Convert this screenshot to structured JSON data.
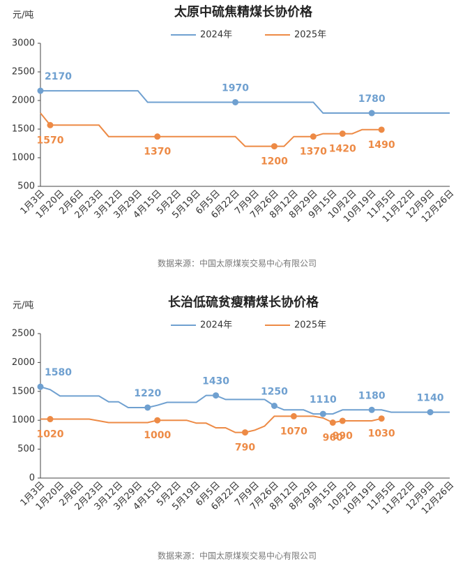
{
  "chart_data": [
    {
      "type": "line",
      "title": "太原中硫焦精煤长协价格",
      "ylabel": "元/吨",
      "source": "数据来源：中国太原煤炭交易中心有限公司",
      "categories": [
        "1月3日",
        null,
        "1月20日",
        null,
        "2月6日",
        null,
        "2月23日",
        null,
        "3月12日",
        null,
        "3月29日",
        null,
        "4月15日",
        null,
        "5月2日",
        null,
        "5月19日",
        null,
        "6月5日",
        null,
        "6月22日",
        null,
        "7月9日",
        null,
        "7月26日",
        null,
        "8月12日",
        null,
        "8月29日",
        null,
        "9月15日",
        null,
        "10月2日",
        null,
        "10月19日",
        null,
        "11月5日",
        null,
        "11月22日",
        null,
        "12月9日",
        null,
        "12月26日"
      ],
      "series": [
        {
          "name": "2024年",
          "color": "#6fa0d0",
          "label_side": "above",
          "marked_points": [
            0,
            20,
            34
          ],
          "values": [
            2170,
            2170,
            2170,
            2170,
            2170,
            2170,
            2170,
            2170,
            2170,
            2170,
            2170,
            1970,
            1970,
            1970,
            1970,
            1970,
            1970,
            1970,
            1970,
            1970,
            1970,
            1970,
            1970,
            1970,
            1970,
            1970,
            1970,
            1970,
            1970,
            1780,
            1780,
            1780,
            1780,
            1780,
            1780,
            1780,
            1780,
            1780,
            1780,
            1780,
            1780,
            1780,
            1780
          ]
        },
        {
          "name": "2025年",
          "color": "#ed8a45",
          "label_side": "below",
          "marked_points": [
            1,
            12,
            24,
            28,
            31,
            35
          ],
          "values": [
            1780,
            1570,
            1570,
            1570,
            1570,
            1570,
            1570,
            1370,
            1370,
            1370,
            1370,
            1370,
            1370,
            1370,
            1370,
            1370,
            1370,
            1370,
            1370,
            1370,
            1370,
            1200,
            1200,
            1200,
            1200,
            1200,
            1370,
            1370,
            1370,
            1420,
            1420,
            1420,
            1420,
            1490,
            1490,
            1490,
            null,
            null,
            null,
            null,
            null,
            null,
            null
          ]
        }
      ],
      "ylim": [
        500,
        3000
      ],
      "yticks": [
        500,
        1000,
        1500,
        2000,
        2500,
        3000
      ],
      "grid": false
    },
    {
      "type": "line",
      "title": "长治低硫贫瘦精煤长协价格",
      "ylabel": "元/吨",
      "source": "数据来源：中国太原煤炭交易中心有限公司",
      "categories": [
        "1月3日",
        null,
        "1月20日",
        null,
        "2月6日",
        null,
        "2月23日",
        null,
        "3月12日",
        null,
        "3月29日",
        null,
        "4月15日",
        null,
        "5月2日",
        null,
        "5月19日",
        null,
        "6月5日",
        null,
        "6月22日",
        null,
        "7月9日",
        null,
        "7月26日",
        null,
        "8月12日",
        null,
        "8月29日",
        null,
        "9月15日",
        null,
        "10月2日",
        null,
        "10月19日",
        null,
        "11月5日",
        null,
        "11月22日",
        null,
        "12月9日",
        null,
        "12月26日"
      ],
      "series": [
        {
          "name": "2024年",
          "color": "#6fa0d0",
          "label_side": "above",
          "marked_points": [
            0,
            11,
            18,
            24,
            29,
            34,
            40
          ],
          "values": [
            1580,
            1530,
            1420,
            1420,
            1420,
            1420,
            1420,
            1320,
            1320,
            1220,
            1220,
            1220,
            1260,
            1310,
            1310,
            1310,
            1310,
            1430,
            1430,
            1360,
            1360,
            1360,
            1360,
            1360,
            1250,
            1180,
            1180,
            1180,
            1110,
            1110,
            1110,
            1180,
            1180,
            1180,
            1180,
            1180,
            1140,
            1140,
            1140,
            1140,
            1140,
            1140,
            1140
          ]
        },
        {
          "name": "2025年",
          "color": "#ed8a45",
          "label_side": "below",
          "marked_points": [
            1,
            12,
            21,
            26,
            30,
            31,
            35
          ],
          "values": [
            1020,
            1020,
            1020,
            1020,
            1020,
            1020,
            990,
            960,
            960,
            960,
            960,
            960,
            1000,
            1000,
            1000,
            1000,
            950,
            950,
            870,
            870,
            790,
            790,
            830,
            900,
            1070,
            1070,
            1070,
            1070,
            1070,
            1040,
            960,
            990,
            990,
            990,
            990,
            1030,
            null,
            null,
            null,
            null,
            null,
            null,
            null
          ]
        }
      ],
      "ylim": [
        0,
        2500
      ],
      "yticks": [
        0,
        500,
        1000,
        1500,
        2000,
        2500
      ],
      "grid": false
    }
  ]
}
